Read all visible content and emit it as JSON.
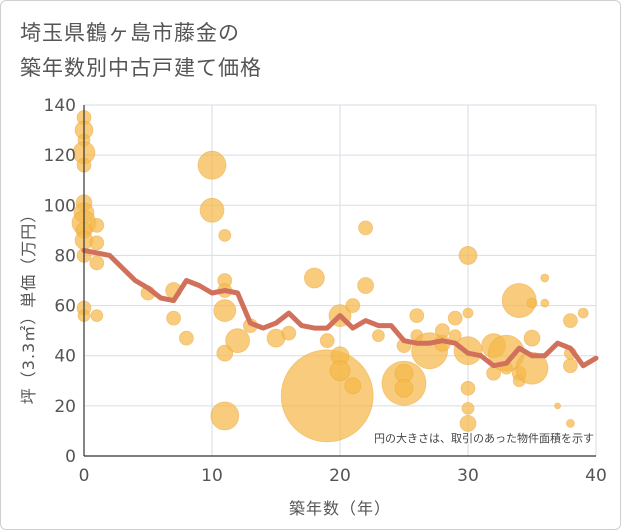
{
  "title": {
    "line1": "埼玉県鶴ヶ島市藤金の",
    "line2": "築年数別中古戸建て価格"
  },
  "note": "円の大きさは、取引のあった物件面積を示す",
  "colors": {
    "line": "#d2715b",
    "bubble": "#f5b94a",
    "grid": "#d6dde6",
    "axis": "#333333",
    "text": "#555555"
  },
  "chart_data": {
    "type": "scatter",
    "title": "埼玉県鶴ヶ島市藤金の築年数別中古戸建て価格",
    "xlabel": "築年数（年）",
    "ylabel": "坪（3.3㎡）単価（万円）",
    "xlim": [
      0,
      40
    ],
    "ylim": [
      0,
      140
    ],
    "xticks": [
      "0",
      "10",
      "20",
      "30",
      "40"
    ],
    "yticks": [
      "0",
      "20",
      "40",
      "60",
      "80",
      "100",
      "120",
      "140"
    ],
    "grid": true,
    "series": [
      {
        "kind": "bubble",
        "points": [
          {
            "x": 0,
            "y": 135,
            "s": 7
          },
          {
            "x": 0,
            "y": 130,
            "s": 9
          },
          {
            "x": 0,
            "y": 126,
            "s": 6
          },
          {
            "x": 0,
            "y": 121,
            "s": 11
          },
          {
            "x": 0,
            "y": 116,
            "s": 7
          },
          {
            "x": 0,
            "y": 101,
            "s": 8
          },
          {
            "x": 0,
            "y": 97,
            "s": 10
          },
          {
            "x": 0,
            "y": 93,
            "s": 12
          },
          {
            "x": 0,
            "y": 90,
            "s": 8
          },
          {
            "x": 0,
            "y": 86,
            "s": 9
          },
          {
            "x": 0,
            "y": 80,
            "s": 7
          },
          {
            "x": 0,
            "y": 59,
            "s": 7
          },
          {
            "x": 0,
            "y": 56,
            "s": 6
          },
          {
            "x": 1,
            "y": 92,
            "s": 7
          },
          {
            "x": 1,
            "y": 85,
            "s": 7
          },
          {
            "x": 1,
            "y": 77,
            "s": 7
          },
          {
            "x": 1,
            "y": 56,
            "s": 6
          },
          {
            "x": 5,
            "y": 65,
            "s": 7
          },
          {
            "x": 7,
            "y": 66,
            "s": 8
          },
          {
            "x": 7,
            "y": 55,
            "s": 7
          },
          {
            "x": 8,
            "y": 47,
            "s": 7
          },
          {
            "x": 10,
            "y": 116,
            "s": 14
          },
          {
            "x": 10,
            "y": 98,
            "s": 12
          },
          {
            "x": 11,
            "y": 88,
            "s": 6
          },
          {
            "x": 11,
            "y": 70,
            "s": 7
          },
          {
            "x": 11,
            "y": 66,
            "s": 7
          },
          {
            "x": 11,
            "y": 58,
            "s": 11
          },
          {
            "x": 11,
            "y": 41,
            "s": 8
          },
          {
            "x": 11,
            "y": 16,
            "s": 14
          },
          {
            "x": 12,
            "y": 46,
            "s": 12
          },
          {
            "x": 13,
            "y": 52,
            "s": 7
          },
          {
            "x": 15,
            "y": 47,
            "s": 9
          },
          {
            "x": 16,
            "y": 49,
            "s": 7
          },
          {
            "x": 18,
            "y": 71,
            "s": 10
          },
          {
            "x": 19,
            "y": 24,
            "s": 46
          },
          {
            "x": 19,
            "y": 46,
            "s": 7
          },
          {
            "x": 20,
            "y": 56,
            "s": 11
          },
          {
            "x": 20,
            "y": 40,
            "s": 9
          },
          {
            "x": 20,
            "y": 34,
            "s": 10
          },
          {
            "x": 21,
            "y": 60,
            "s": 7
          },
          {
            "x": 21,
            "y": 28,
            "s": 8
          },
          {
            "x": 22,
            "y": 91,
            "s": 7
          },
          {
            "x": 22,
            "y": 68,
            "s": 8
          },
          {
            "x": 23,
            "y": 48,
            "s": 6
          },
          {
            "x": 25,
            "y": 29,
            "s": 22
          },
          {
            "x": 25,
            "y": 33,
            "s": 9
          },
          {
            "x": 25,
            "y": 27,
            "s": 9
          },
          {
            "x": 25,
            "y": 44,
            "s": 7
          },
          {
            "x": 26,
            "y": 56,
            "s": 7
          },
          {
            "x": 26,
            "y": 48,
            "s": 6
          },
          {
            "x": 27,
            "y": 42,
            "s": 18
          },
          {
            "x": 28,
            "y": 45,
            "s": 8
          },
          {
            "x": 28,
            "y": 50,
            "s": 7
          },
          {
            "x": 29,
            "y": 55,
            "s": 7
          },
          {
            "x": 29,
            "y": 48,
            "s": 6
          },
          {
            "x": 30,
            "y": 80,
            "s": 9
          },
          {
            "x": 30,
            "y": 42,
            "s": 14
          },
          {
            "x": 30,
            "y": 27,
            "s": 7
          },
          {
            "x": 30,
            "y": 19,
            "s": 6
          },
          {
            "x": 30,
            "y": 13,
            "s": 8
          },
          {
            "x": 30,
            "y": 57,
            "s": 5
          },
          {
            "x": 32,
            "y": 44,
            "s": 12
          },
          {
            "x": 32,
            "y": 33,
            "s": 7
          },
          {
            "x": 33,
            "y": 41,
            "s": 18
          },
          {
            "x": 33,
            "y": 35,
            "s": 6
          },
          {
            "x": 34,
            "y": 62,
            "s": 17
          },
          {
            "x": 34,
            "y": 33,
            "s": 7
          },
          {
            "x": 34,
            "y": 30,
            "s": 6
          },
          {
            "x": 35,
            "y": 35,
            "s": 16
          },
          {
            "x": 35,
            "y": 47,
            "s": 8
          },
          {
            "x": 35,
            "y": 61,
            "s": 5
          },
          {
            "x": 36,
            "y": 71,
            "s": 4
          },
          {
            "x": 36,
            "y": 61,
            "s": 4
          },
          {
            "x": 37,
            "y": 20,
            "s": 3
          },
          {
            "x": 38,
            "y": 54,
            "s": 7
          },
          {
            "x": 38,
            "y": 41,
            "s": 6
          },
          {
            "x": 38,
            "y": 36,
            "s": 7
          },
          {
            "x": 38,
            "y": 13,
            "s": 4
          },
          {
            "x": 39,
            "y": 57,
            "s": 5
          }
        ]
      },
      {
        "kind": "line",
        "x": [
          0,
          1,
          2,
          3,
          4,
          5,
          6,
          7,
          8,
          9,
          10,
          11,
          12,
          13,
          14,
          15,
          16,
          17,
          18,
          19,
          20,
          21,
          22,
          23,
          24,
          25,
          26,
          27,
          28,
          29,
          30,
          31,
          32,
          33,
          34,
          35,
          36,
          37,
          38,
          39,
          40
        ],
        "y": [
          82,
          81,
          80,
          75,
          70,
          67,
          63,
          62,
          70,
          68,
          65,
          66,
          65,
          53,
          51,
          53,
          57,
          52,
          51,
          51,
          56,
          51,
          54,
          52,
          52,
          46,
          45,
          45,
          46,
          45,
          41,
          40,
          36,
          37,
          43,
          40,
          40,
          45,
          43,
          36,
          39
        ]
      }
    ]
  }
}
